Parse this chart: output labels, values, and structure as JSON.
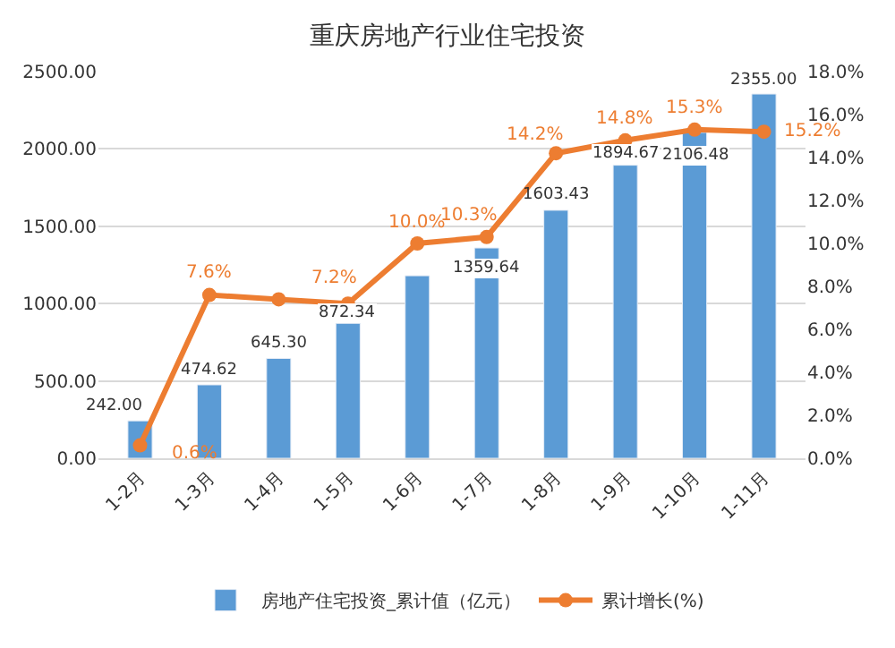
{
  "chart_data": {
    "type": "bar",
    "title": "重庆房地产行业住宅投资",
    "categories": [
      "1-2月",
      "1-3月",
      "1-4月",
      "1-5月",
      "1-6月",
      "1-7月",
      "1-8月",
      "1-9月",
      "1-10月",
      "1-11月"
    ],
    "series": [
      {
        "name": "房地产住宅投资_累计值（亿元）",
        "color": "#5b9bd5",
        "values": [
          242.0,
          474.62,
          645.3,
          872.34,
          1180,
          1359.64,
          1603.43,
          1894.67,
          2106.48,
          2355.0
        ],
        "value_labels": [
          "242.00",
          "474.62",
          "645.30",
          "872.34",
          null,
          "1359.64",
          "1603.43",
          "1894.67",
          "2106.48",
          "2355.00"
        ]
      },
      {
        "name": "累计增长(%)",
        "type": "line",
        "axis": "y2",
        "color": "#ed7d31",
        "marker": "circle",
        "values": [
          0.6,
          7.6,
          7.4,
          7.2,
          10.0,
          10.3,
          14.2,
          14.8,
          15.3,
          15.2
        ],
        "value_labels": [
          "0.6%",
          "7.6%",
          null,
          "7.2%",
          "10.0%",
          "10.3%",
          "14.2%",
          "14.8%",
          "15.3%",
          "15.2%"
        ]
      }
    ],
    "ylim": [
      0,
      2500
    ],
    "yticks": [
      {
        "value": 0,
        "label": "0.00"
      },
      {
        "value": 500,
        "label": "500.00"
      },
      {
        "value": 1000,
        "label": "1000.00"
      },
      {
        "value": 1500,
        "label": "1500.00"
      },
      {
        "value": 2000,
        "label": "2000.00"
      },
      {
        "value": 2500,
        "label": "2500.00"
      }
    ],
    "y2lim": [
      0,
      18
    ],
    "y2ticks": [
      {
        "value": 0,
        "label": "0.0%"
      },
      {
        "value": 2,
        "label": "2.0%"
      },
      {
        "value": 4,
        "label": "4.0%"
      },
      {
        "value": 6,
        "label": "6.0%"
      },
      {
        "value": 8,
        "label": "8.0%"
      },
      {
        "value": 10,
        "label": "10.0%"
      },
      {
        "value": 12,
        "label": "12.0%"
      },
      {
        "value": 14,
        "label": "14.0%"
      },
      {
        "value": 16,
        "label": "16.0%"
      },
      {
        "value": 18,
        "label": "18.0%"
      }
    ],
    "grid": "y",
    "legend": "bottom"
  }
}
